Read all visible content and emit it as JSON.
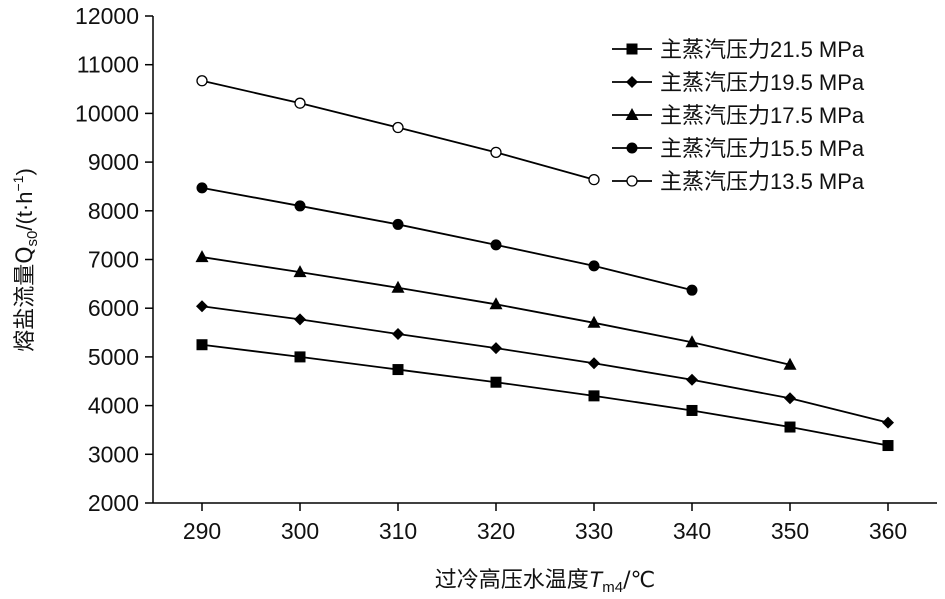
{
  "chart_data": {
    "type": "line",
    "title": "",
    "xlabel_main": "过冷高压水温度",
    "xlabel_var": "T",
    "xlabel_sub": "m4",
    "xlabel_unit": "/℃",
    "ylabel_main": "熔盐流量Q",
    "ylabel_sub": "s0",
    "ylabel_unit_prefix": "/(t·h",
    "ylabel_sup": "−1",
    "ylabel_unit_suffix": ")",
    "xlim": [
      285,
      365
    ],
    "ylim": [
      2000,
      12000
    ],
    "xticks": [
      290,
      300,
      310,
      320,
      330,
      340,
      350,
      360
    ],
    "yticks": [
      2000,
      3000,
      4000,
      5000,
      6000,
      7000,
      8000,
      9000,
      10000,
      11000,
      12000
    ],
    "grid": false,
    "legend_position": "top-right",
    "series": [
      {
        "name": "主蒸汽压力21.5 MPa",
        "marker": "square",
        "x": [
          290,
          300,
          310,
          320,
          330,
          340,
          350,
          360
        ],
        "values": [
          5250,
          5000,
          4740,
          4480,
          4200,
          3900,
          3560,
          3180
        ]
      },
      {
        "name": "主蒸汽压力19.5 MPa",
        "marker": "diamond",
        "x": [
          290,
          300,
          310,
          320,
          330,
          340,
          350,
          360
        ],
        "values": [
          6040,
          5770,
          5470,
          5180,
          4870,
          4530,
          4150,
          3650
        ]
      },
      {
        "name": "主蒸汽压力17.5 MPa",
        "marker": "triangle",
        "x": [
          290,
          300,
          310,
          320,
          330,
          340,
          350
        ],
        "values": [
          7050,
          6740,
          6420,
          6080,
          5700,
          5300,
          4840
        ]
      },
      {
        "name": "主蒸汽压力15.5 MPa",
        "marker": "circle",
        "x": [
          290,
          300,
          310,
          320,
          330,
          340
        ],
        "values": [
          8470,
          8100,
          7720,
          7300,
          6870,
          6370
        ]
      },
      {
        "name": "主蒸汽压力13.5 MPa",
        "marker": "open-circle",
        "x": [
          290,
          300,
          310,
          320,
          330
        ],
        "values": [
          10670,
          10210,
          9710,
          9200,
          8640
        ]
      }
    ]
  }
}
